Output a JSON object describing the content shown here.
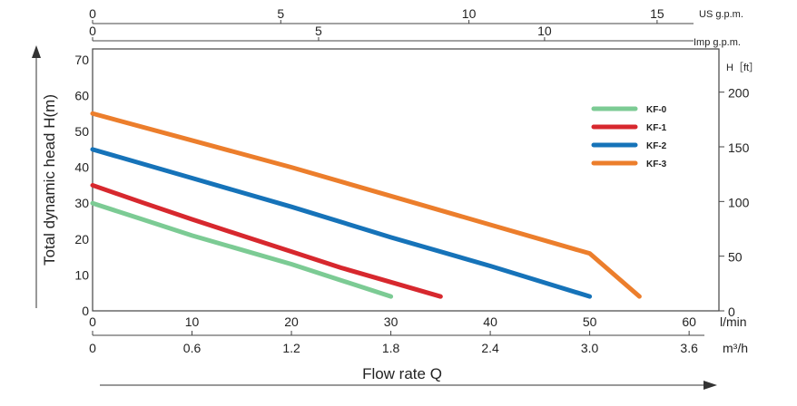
{
  "chart_data": {
    "type": "line",
    "title": "",
    "xlabel": "Flow rate Q",
    "ylabel": "Total dynamic head H(m)",
    "x_unit_label": "l/min",
    "xlim": [
      0,
      63
    ],
    "ylim": [
      0,
      73
    ],
    "x_ticks": [
      "0",
      "10",
      "20",
      "30",
      "40",
      "50",
      "60"
    ],
    "y_ticks": [
      "0",
      "10",
      "20",
      "30",
      "40",
      "50",
      "60",
      "70"
    ],
    "secondary_axes": {
      "us_gpm": {
        "label": "US g.p.m.",
        "ticks": [
          {
            "value": 0,
            "label": "0"
          },
          {
            "value": 5,
            "label": "5"
          },
          {
            "value": 10,
            "label": "10"
          },
          {
            "value": 15,
            "label": "15"
          }
        ]
      },
      "imp_gpm": {
        "label": "Imp g.p.m.",
        "ticks": [
          {
            "value": 0,
            "label": "0"
          },
          {
            "value": 5,
            "label": "5"
          },
          {
            "value": 10,
            "label": "10"
          }
        ]
      },
      "m3h": {
        "label": "m³/h",
        "ticks": [
          {
            "value": 0,
            "label": "0"
          },
          {
            "value": 0.6,
            "label": "0.6"
          },
          {
            "value": 1.2,
            "label": "1.2"
          },
          {
            "value": 1.8,
            "label": "1.8"
          },
          {
            "value": 2.4,
            "label": "2.4"
          },
          {
            "value": 3.0,
            "label": "3.0"
          },
          {
            "value": 3.6,
            "label": "3.6"
          }
        ]
      },
      "feet": {
        "label": "H［ft］",
        "ticks": [
          {
            "value": 0,
            "label": "0"
          },
          {
            "value": 50,
            "label": "50"
          },
          {
            "value": 100,
            "label": "100"
          },
          {
            "value": 150,
            "label": "150"
          },
          {
            "value": 200,
            "label": "200"
          }
        ]
      }
    },
    "grid": true,
    "legend_position": "top-right",
    "series": [
      {
        "name": "KF-0",
        "color": "#7ccb94",
        "x": [
          0,
          5,
          10,
          15,
          20,
          25,
          30
        ],
        "y": [
          30,
          25.5,
          21,
          17,
          13,
          8.5,
          4
        ]
      },
      {
        "name": "KF-1",
        "color": "#d7282e",
        "x": [
          0,
          5,
          10,
          15,
          20,
          25,
          30,
          35
        ],
        "y": [
          35,
          30.2,
          25.5,
          21,
          16.5,
          12,
          8,
          4
        ]
      },
      {
        "name": "KF-2",
        "color": "#1673b9",
        "x": [
          0,
          10,
          20,
          30,
          40,
          50
        ],
        "y": [
          45,
          37,
          29,
          20.5,
          12.5,
          4
        ]
      },
      {
        "name": "KF-3",
        "color": "#ec7e2c",
        "x": [
          0,
          10,
          20,
          30,
          40,
          50,
          55
        ],
        "y": [
          55,
          47.5,
          40,
          32,
          24,
          16,
          4
        ]
      }
    ]
  }
}
